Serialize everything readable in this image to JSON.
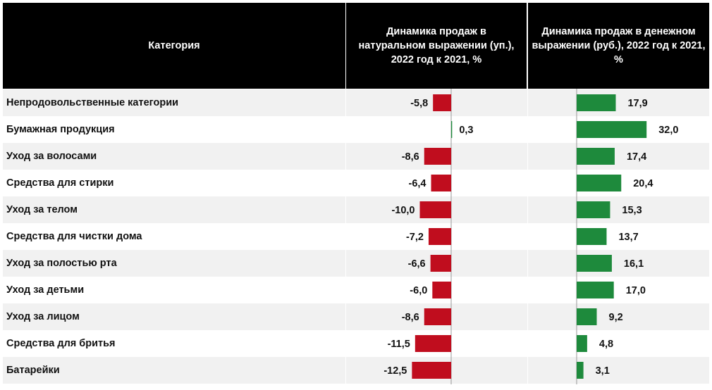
{
  "header": {
    "category": "Категория",
    "natural": "Динамика продаж в натуральном выражении (уп.), 2022 год к 2021, %",
    "money": "Динамика продаж в денежном выражении (руб.), 2022 год к 2021, %"
  },
  "colors": {
    "negative": "#c00d1e",
    "positive": "#1e8a3c",
    "header_bg": "#000000"
  },
  "chart_data": [
    {
      "type": "bar",
      "orientation": "horizontal",
      "title": "Динамика продаж в натуральном выражении (уп.), 2022 год к 2021, %",
      "categories": [
        "Непродовольственные категории",
        "Бумажная продукция",
        "Уход за волосами",
        "Средства для стирки",
        "Уход за телом",
        "Средства для чистки дома",
        "Уход за полостью рта",
        "Уход за детьми",
        "Уход за лицом",
        "Средства для бритья",
        "Батарейки"
      ],
      "values": [
        -5.8,
        0.3,
        -8.6,
        -6.4,
        -10.0,
        -7.2,
        -6.6,
        -6.0,
        -8.6,
        -11.5,
        -12.5
      ],
      "labels": [
        "-5,8",
        "0,3",
        "-8,6",
        "-6,4",
        "-10,0",
        "-7,2",
        "-6,6",
        "-6,0",
        "-8,6",
        "-11,5",
        "-12,5"
      ]
    },
    {
      "type": "bar",
      "orientation": "horizontal",
      "title": "Динамика продаж в денежном выражении (руб.), 2022 год к 2021, %",
      "categories": [
        "Непродовольственные категории",
        "Бумажная продукция",
        "Уход за волосами",
        "Средства для стирки",
        "Уход за телом",
        "Средства для чистки дома",
        "Уход за полостью рта",
        "Уход за детьми",
        "Уход за лицом",
        "Средства для бритья",
        "Батарейки"
      ],
      "values": [
        17.9,
        32.0,
        17.4,
        20.4,
        15.3,
        13.7,
        16.1,
        17.0,
        9.2,
        4.8,
        3.1
      ],
      "labels": [
        "17,9",
        "32,0",
        "17,4",
        "20,4",
        "15,3",
        "13,7",
        "16,1",
        "17,0",
        "9,2",
        "4,8",
        "3,1"
      ]
    }
  ]
}
